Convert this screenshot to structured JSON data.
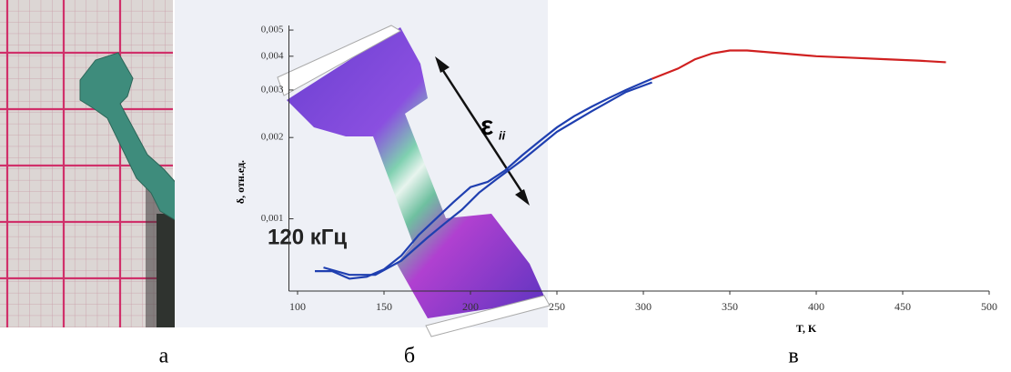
{
  "panels": {
    "a": {
      "label": "а"
    },
    "b": {
      "label": "б",
      "frequency": "120 кГц",
      "strain_symbol": "ε",
      "strain_subscript": "ii"
    },
    "c": {
      "label": "в"
    }
  },
  "chart_data": {
    "type": "line",
    "x_label": "T, K",
    "y_label": "δ, отн.ед.",
    "xlim": [
      95,
      500
    ],
    "xticks": [
      100,
      150,
      200,
      250,
      300,
      350,
      400,
      450,
      500
    ],
    "ylim": [
      0.00054,
      0.0052
    ],
    "log_y": true,
    "yticks": [
      {
        "value": 0.001,
        "label": "0,001"
      },
      {
        "value": 0.002,
        "label": "0,002"
      },
      {
        "value": 0.003,
        "label": "0,003"
      },
      {
        "value": 0.004,
        "label": "0,004"
      },
      {
        "value": 0.005,
        "label": "0,005"
      }
    ],
    "series": [
      {
        "color": "#1f3fb0",
        "x": [
          110,
          120,
          130,
          140,
          150,
          160,
          170,
          180,
          190,
          200,
          210,
          220,
          230,
          240,
          250,
          260,
          270,
          280,
          290,
          300,
          305
        ],
        "values": [
          0.00064,
          0.00064,
          0.0006,
          0.00061,
          0.00065,
          0.00073,
          0.00087,
          0.001,
          0.00115,
          0.00131,
          0.00137,
          0.00151,
          0.00172,
          0.00194,
          0.00218,
          0.0024,
          0.0026,
          0.0028,
          0.003,
          0.0032,
          0.0033
        ]
      },
      {
        "color": "#1f3fb0",
        "x": [
          115,
          130,
          145,
          160,
          175,
          185,
          195,
          205,
          215,
          230,
          250,
          270,
          290,
          305
        ],
        "values": [
          0.00066,
          0.00062,
          0.00062,
          0.0007,
          0.00085,
          0.00096,
          0.00108,
          0.00125,
          0.0014,
          0.00165,
          0.0021,
          0.0025,
          0.00295,
          0.0032
        ]
      },
      {
        "color": "#d02020",
        "x": [
          305,
          320,
          330,
          340,
          350,
          360,
          380,
          400,
          420,
          440,
          460,
          475
        ],
        "values": [
          0.0033,
          0.0036,
          0.0039,
          0.0041,
          0.0042,
          0.0042,
          0.0041,
          0.004,
          0.00395,
          0.0039,
          0.00385,
          0.0038
        ]
      }
    ]
  }
}
